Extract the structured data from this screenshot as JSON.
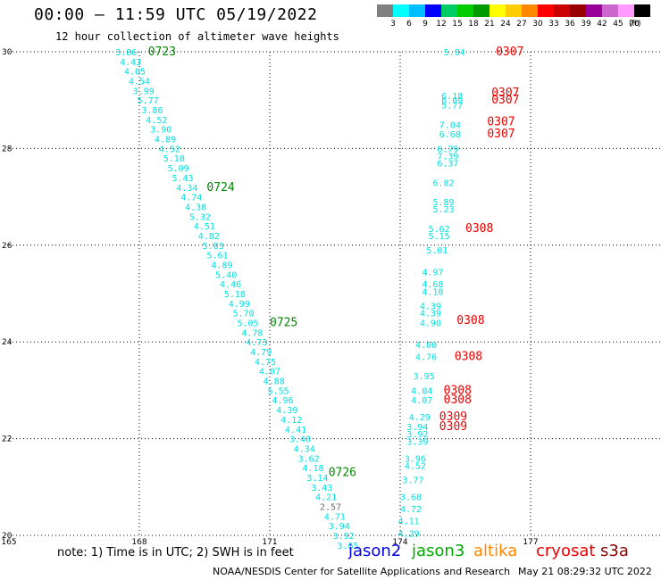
{
  "header": {
    "title": "00:00 – 11:59 UTC 05/19/2022",
    "subtitle": "12 hour collection of altimeter wave heights"
  },
  "scale": {
    "unit": "(ft)",
    "colors": [
      "#808080",
      "#00ffff",
      "#00bfff",
      "#0000ff",
      "#00cc66",
      "#00cc00",
      "#009900",
      "#ffff00",
      "#ffcc00",
      "#ff8800",
      "#ff0000",
      "#cc0000",
      "#990000",
      "#990099",
      "#cc66cc",
      "#ff99ff",
      "#000000"
    ],
    "labels": [
      "3",
      "6",
      "9",
      "12",
      "15",
      "18",
      "21",
      "24",
      "27",
      "30",
      "33",
      "36",
      "39",
      "42",
      "45",
      "70"
    ]
  },
  "footer": {
    "note": "note:  1) Time is in UTC;  2) SWH is in feet",
    "sats": [
      {
        "name": "jason2",
        "color": "#0000ee"
      },
      {
        "name": "jason3",
        "color": "#00aa00"
      },
      {
        "name": "altika",
        "color": "#ff8800"
      },
      {
        "name": "cryosat",
        "color": "#ee0000"
      },
      {
        "name": "s3a",
        "color": "#8b0000"
      }
    ],
    "org": "NOAA/NESDIS Center for Satellite Applications and Research",
    "timestamp": "May 21 08:29:32 UTC 2022"
  },
  "chart_data": {
    "type": "scatter",
    "title": "00:00 – 11:59 UTC 05/19/2022",
    "subtitle": "12 hour collection of altimeter wave heights",
    "xlim": [
      165,
      180
    ],
    "ylim": [
      20,
      30
    ],
    "xticks": [
      165,
      168,
      171,
      174,
      177
    ],
    "yticks": [
      20,
      22,
      24,
      26,
      28,
      30
    ],
    "ytick_labels": [
      "20",
      "22",
      "24",
      "26",
      "28",
      "30"
    ],
    "grid": true,
    "series": [
      {
        "color": "#00e0e0",
        "points": [
          {
            "x": 167.45,
            "y": 30.0,
            "v": "3.86"
          },
          {
            "x": 167.55,
            "y": 29.8,
            "v": "4.43"
          },
          {
            "x": 167.65,
            "y": 29.6,
            "v": "4.05"
          },
          {
            "x": 167.75,
            "y": 29.4,
            "v": "4.54"
          },
          {
            "x": 167.85,
            "y": 29.2,
            "v": "3.99"
          },
          {
            "x": 167.95,
            "y": 29.0,
            "v": "5.77"
          },
          {
            "x": 168.05,
            "y": 28.8,
            "v": "3.86"
          },
          {
            "x": 168.15,
            "y": 28.6,
            "v": "4.52"
          },
          {
            "x": 168.25,
            "y": 28.4,
            "v": "3.90"
          },
          {
            "x": 168.35,
            "y": 28.2,
            "v": "4.89"
          },
          {
            "x": 168.45,
            "y": 28.0,
            "v": "4.52"
          },
          {
            "x": 168.55,
            "y": 27.8,
            "v": "5.10"
          },
          {
            "x": 168.65,
            "y": 27.6,
            "v": "5.09"
          },
          {
            "x": 168.75,
            "y": 27.4,
            "v": "5.43"
          },
          {
            "x": 168.85,
            "y": 27.2,
            "v": "4.34"
          },
          {
            "x": 168.95,
            "y": 27.0,
            "v": "4.74"
          },
          {
            "x": 169.05,
            "y": 26.8,
            "v": "4.38"
          },
          {
            "x": 169.15,
            "y": 26.6,
            "v": "5.32"
          },
          {
            "x": 169.25,
            "y": 26.4,
            "v": "4.51"
          },
          {
            "x": 169.35,
            "y": 26.2,
            "v": "4.82"
          },
          {
            "x": 169.45,
            "y": 26.0,
            "v": "5.03"
          },
          {
            "x": 169.55,
            "y": 25.8,
            "v": "5.61"
          },
          {
            "x": 169.65,
            "y": 25.6,
            "v": "4.89"
          },
          {
            "x": 169.75,
            "y": 25.4,
            "v": "5.40"
          },
          {
            "x": 169.85,
            "y": 25.2,
            "v": "4.46"
          },
          {
            "x": 169.95,
            "y": 25.0,
            "v": "5.18"
          },
          {
            "x": 170.05,
            "y": 24.8,
            "v": "4.99"
          },
          {
            "x": 170.15,
            "y": 24.6,
            "v": "5.70"
          },
          {
            "x": 170.25,
            "y": 24.4,
            "v": "5.05"
          },
          {
            "x": 170.35,
            "y": 24.2,
            "v": "4.78"
          },
          {
            "x": 170.45,
            "y": 24.0,
            "v": "4.73"
          },
          {
            "x": 170.55,
            "y": 23.8,
            "v": "4.79"
          },
          {
            "x": 170.65,
            "y": 23.6,
            "v": "4.75"
          },
          {
            "x": 170.75,
            "y": 23.4,
            "v": "4.07"
          },
          {
            "x": 170.85,
            "y": 23.2,
            "v": "4.88"
          },
          {
            "x": 170.95,
            "y": 23.0,
            "v": "5.55"
          },
          {
            "x": 171.05,
            "y": 22.8,
            "v": "4.96"
          },
          {
            "x": 171.15,
            "y": 22.6,
            "v": "4.39"
          },
          {
            "x": 171.25,
            "y": 22.4,
            "v": "4.12"
          },
          {
            "x": 171.35,
            "y": 22.2,
            "v": "4.41"
          },
          {
            "x": 171.45,
            "y": 22.0,
            "v": "3.40"
          },
          {
            "x": 171.55,
            "y": 21.8,
            "v": "4.34"
          },
          {
            "x": 171.65,
            "y": 21.6,
            "v": "3.62"
          },
          {
            "x": 171.75,
            "y": 21.4,
            "v": "4.18"
          },
          {
            "x": 171.85,
            "y": 21.2,
            "v": "3.14"
          },
          {
            "x": 171.95,
            "y": 21.0,
            "v": "3.43"
          },
          {
            "x": 172.05,
            "y": 20.8,
            "v": "4.21"
          },
          {
            "x": 172.25,
            "y": 20.4,
            "v": "4.71"
          },
          {
            "x": 172.35,
            "y": 20.2,
            "v": "3.94"
          },
          {
            "x": 172.45,
            "y": 20.0,
            "v": "3.92"
          },
          {
            "x": 172.55,
            "y": 19.8,
            "v": "3.65"
          }
        ]
      },
      {
        "color": "#707070",
        "points": [
          {
            "x": 172.15,
            "y": 20.6,
            "v": "2.57"
          }
        ]
      },
      {
        "color": "#00e0e0",
        "points": [
          {
            "x": 175.0,
            "y": 30.0,
            "v": "5.94"
          },
          {
            "x": 174.95,
            "y": 29.1,
            "v": "6.18"
          },
          {
            "x": 174.95,
            "y": 29.0,
            "v": "6.09"
          },
          {
            "x": 174.95,
            "y": 28.9,
            "v": "5.77"
          },
          {
            "x": 174.9,
            "y": 28.5,
            "v": "7.04"
          },
          {
            "x": 174.9,
            "y": 28.3,
            "v": "6.68"
          },
          {
            "x": 174.85,
            "y": 28.0,
            "v": "6.79"
          },
          {
            "x": 174.85,
            "y": 27.85,
            "v": "7.39"
          },
          {
            "x": 174.85,
            "y": 27.7,
            "v": "6.37"
          },
          {
            "x": 174.75,
            "y": 27.3,
            "v": "6.82"
          },
          {
            "x": 174.75,
            "y": 26.9,
            "v": "5.89"
          },
          {
            "x": 174.75,
            "y": 26.75,
            "v": "5.23"
          },
          {
            "x": 174.65,
            "y": 26.35,
            "v": "5.62"
          },
          {
            "x": 174.65,
            "y": 26.2,
            "v": "5.15"
          },
          {
            "x": 174.6,
            "y": 25.9,
            "v": "5.01"
          },
          {
            "x": 174.5,
            "y": 25.45,
            "v": "4.97"
          },
          {
            "x": 174.5,
            "y": 25.2,
            "v": "4.68"
          },
          {
            "x": 174.5,
            "y": 25.05,
            "v": "4.10"
          },
          {
            "x": 174.45,
            "y": 24.75,
            "v": "4.39"
          },
          {
            "x": 174.45,
            "y": 24.6,
            "v": "4.39"
          },
          {
            "x": 174.45,
            "y": 24.4,
            "v": "4.90"
          },
          {
            "x": 174.35,
            "y": 23.95,
            "v": "4.00"
          },
          {
            "x": 174.35,
            "y": 23.7,
            "v": "4.76"
          },
          {
            "x": 174.3,
            "y": 23.3,
            "v": "3.95"
          },
          {
            "x": 174.25,
            "y": 23.0,
            "v": "4.04"
          },
          {
            "x": 174.25,
            "y": 22.8,
            "v": "4.07"
          },
          {
            "x": 174.2,
            "y": 22.45,
            "v": "4.29"
          },
          {
            "x": 174.15,
            "y": 22.25,
            "v": "3.94"
          },
          {
            "x": 174.15,
            "y": 22.1,
            "v": "3.92"
          },
          {
            "x": 174.15,
            "y": 21.95,
            "v": "3.39"
          },
          {
            "x": 174.1,
            "y": 21.6,
            "v": "3.96"
          },
          {
            "x": 174.1,
            "y": 21.45,
            "v": "4.52"
          },
          {
            "x": 174.05,
            "y": 21.15,
            "v": "3.77"
          },
          {
            "x": 174.0,
            "y": 20.8,
            "v": "3.68"
          },
          {
            "x": 174.0,
            "y": 20.55,
            "v": "4.72"
          },
          {
            "x": 173.95,
            "y": 20.3,
            "v": "4.11"
          },
          {
            "x": 173.95,
            "y": 20.05,
            "v": "4.29"
          }
        ]
      },
      {
        "color": "#008800",
        "points": [
          {
            "x": 168.2,
            "y": 30.0,
            "v": "0723"
          },
          {
            "x": 169.55,
            "y": 27.2,
            "v": "0724"
          },
          {
            "x": 171.0,
            "y": 24.4,
            "v": "0725"
          },
          {
            "x": 172.35,
            "y": 21.3,
            "v": "0726"
          }
        ]
      },
      {
        "color": "#ee0000",
        "points": [
          {
            "x": 176.2,
            "y": 30.0,
            "v": "0307"
          },
          {
            "x": 176.1,
            "y": 29.15,
            "v": "0307"
          },
          {
            "x": 176.1,
            "y": 29.0,
            "v": "0307"
          },
          {
            "x": 176.0,
            "y": 28.55,
            "v": "0307"
          },
          {
            "x": 176.0,
            "y": 28.3,
            "v": "0307"
          },
          {
            "x": 175.5,
            "y": 26.35,
            "v": "0308"
          },
          {
            "x": 175.3,
            "y": 24.45,
            "v": "0308"
          },
          {
            "x": 175.25,
            "y": 23.7,
            "v": "0308"
          },
          {
            "x": 175.0,
            "y": 23.0,
            "v": "0308"
          },
          {
            "x": 175.0,
            "y": 22.8,
            "v": "0308"
          },
          {
            "x": 174.9,
            "y": 22.45,
            "v": "0309"
          },
          {
            "x": 174.9,
            "y": 22.25,
            "v": "0309"
          }
        ]
      }
    ]
  }
}
